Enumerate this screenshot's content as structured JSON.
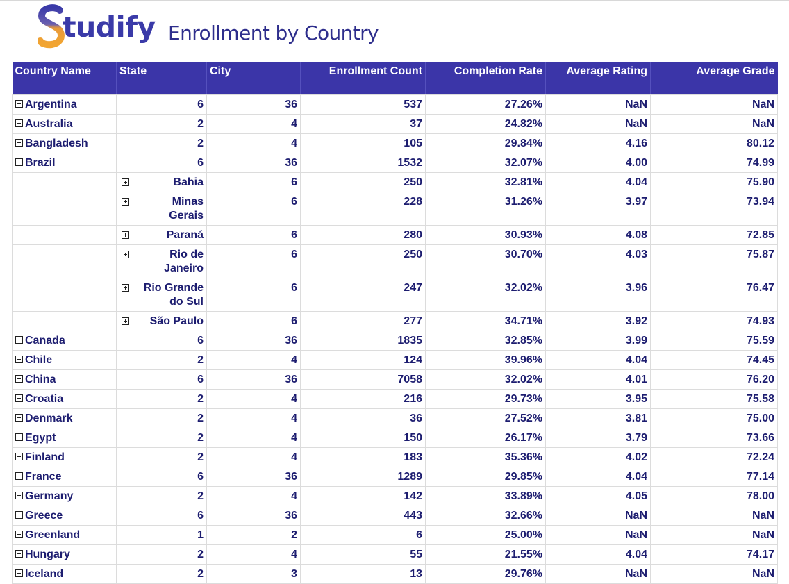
{
  "header": {
    "logo_text": "Studify",
    "title": "Enrollment by Country"
  },
  "colors": {
    "header_bg": "#3b35a8",
    "text": "#1d1d70",
    "logo_blue": "#3a3aa8",
    "logo_orange": "#f2a531"
  },
  "table": {
    "columns": [
      "Country Name",
      "State",
      "City",
      "Enrollment Count",
      "Completion Rate",
      "Average Rating",
      "Average Grade"
    ],
    "rows": [
      {
        "country": "Argentina",
        "state": "6",
        "city": "36",
        "enrollment": "537",
        "completion": "27.26%",
        "rating": "NaN",
        "grade": "NaN"
      },
      {
        "country": "Australia",
        "state": "2",
        "city": "4",
        "enrollment": "37",
        "completion": "24.82%",
        "rating": "NaN",
        "grade": "NaN"
      },
      {
        "country": "Bangladesh",
        "state": "2",
        "city": "4",
        "enrollment": "105",
        "completion": "29.84%",
        "rating": "4.16",
        "grade": "80.12"
      },
      {
        "country": "Brazil",
        "state": "6",
        "city": "36",
        "enrollment": "1532",
        "completion": "32.07%",
        "rating": "4.00",
        "grade": "74.99",
        "expanded": true
      },
      {
        "state_name": "Bahia",
        "city": "6",
        "enrollment": "250",
        "completion": "32.81%",
        "rating": "4.04",
        "grade": "75.90"
      },
      {
        "state_name": "Minas Gerais",
        "city": "6",
        "enrollment": "228",
        "completion": "31.26%",
        "rating": "3.97",
        "grade": "73.94"
      },
      {
        "state_name": "Paraná",
        "city": "6",
        "enrollment": "280",
        "completion": "30.93%",
        "rating": "4.08",
        "grade": "72.85"
      },
      {
        "state_name": "Rio de Janeiro",
        "city": "6",
        "enrollment": "250",
        "completion": "30.70%",
        "rating": "4.03",
        "grade": "75.87"
      },
      {
        "state_name": "Rio Grande do Sul",
        "city": "6",
        "enrollment": "247",
        "completion": "32.02%",
        "rating": "3.96",
        "grade": "76.47"
      },
      {
        "state_name": "São Paulo",
        "city": "6",
        "enrollment": "277",
        "completion": "34.71%",
        "rating": "3.92",
        "grade": "74.93"
      },
      {
        "country": "Canada",
        "state": "6",
        "city": "36",
        "enrollment": "1835",
        "completion": "32.85%",
        "rating": "3.99",
        "grade": "75.59"
      },
      {
        "country": "Chile",
        "state": "2",
        "city": "4",
        "enrollment": "124",
        "completion": "39.96%",
        "rating": "4.04",
        "grade": "74.45"
      },
      {
        "country": "China",
        "state": "6",
        "city": "36",
        "enrollment": "7058",
        "completion": "32.02%",
        "rating": "4.01",
        "grade": "76.20"
      },
      {
        "country": "Croatia",
        "state": "2",
        "city": "4",
        "enrollment": "216",
        "completion": "29.73%",
        "rating": "3.95",
        "grade": "75.58"
      },
      {
        "country": "Denmark",
        "state": "2",
        "city": "4",
        "enrollment": "36",
        "completion": "27.52%",
        "rating": "3.81",
        "grade": "75.00"
      },
      {
        "country": "Egypt",
        "state": "2",
        "city": "4",
        "enrollment": "150",
        "completion": "26.17%",
        "rating": "3.79",
        "grade": "73.66"
      },
      {
        "country": "Finland",
        "state": "2",
        "city": "4",
        "enrollment": "183",
        "completion": "35.36%",
        "rating": "4.02",
        "grade": "72.24"
      },
      {
        "country": "France",
        "state": "6",
        "city": "36",
        "enrollment": "1289",
        "completion": "29.85%",
        "rating": "4.04",
        "grade": "77.14"
      },
      {
        "country": "Germany",
        "state": "2",
        "city": "4",
        "enrollment": "142",
        "completion": "33.89%",
        "rating": "4.05",
        "grade": "78.00"
      },
      {
        "country": "Greece",
        "state": "6",
        "city": "36",
        "enrollment": "443",
        "completion": "32.66%",
        "rating": "NaN",
        "grade": "NaN"
      },
      {
        "country": "Greenland",
        "state": "1",
        "city": "2",
        "enrollment": "6",
        "completion": "25.00%",
        "rating": "NaN",
        "grade": "NaN"
      },
      {
        "country": "Hungary",
        "state": "2",
        "city": "4",
        "enrollment": "55",
        "completion": "21.55%",
        "rating": "4.04",
        "grade": "74.17"
      },
      {
        "country": "Iceland",
        "state": "2",
        "city": "3",
        "enrollment": "13",
        "completion": "29.76%",
        "rating": "NaN",
        "grade": "NaN"
      }
    ]
  }
}
